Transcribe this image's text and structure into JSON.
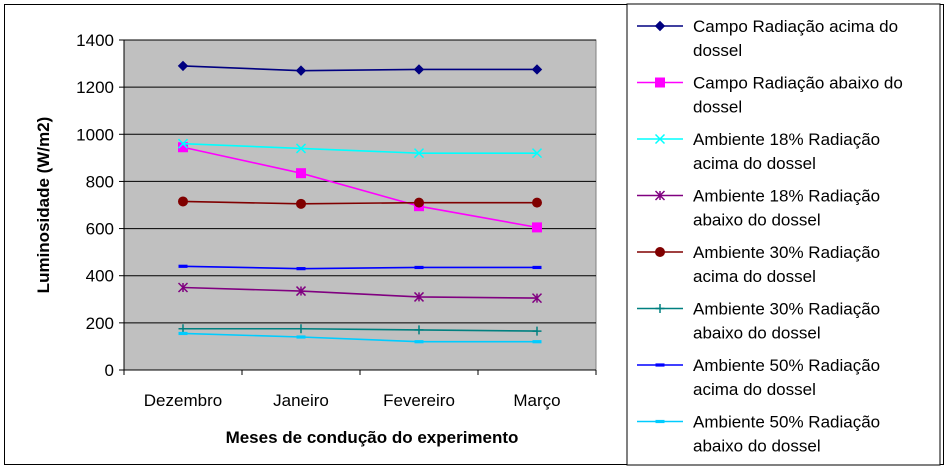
{
  "chart_data": {
    "type": "line",
    "title": "",
    "xlabel": "Meses de condução do experimento",
    "ylabel": "Luminosidade (W/m2)",
    "categories": [
      "Dezembro",
      "Janeiro",
      "Fevereiro",
      "Março"
    ],
    "ylim": [
      0,
      1400
    ],
    "yticks": [
      0,
      200,
      400,
      600,
      800,
      1000,
      1200,
      1400
    ],
    "grid": true,
    "plot_background": "#C0C0C0",
    "legend_position": "right",
    "series": [
      {
        "name": "Campo Radiação acima do dossel",
        "name_lines": [
          "Campo Radiação acima do",
          "dossel"
        ],
        "color": "#000080",
        "marker": "diamond",
        "values": [
          1290,
          1270,
          1275,
          1275
        ]
      },
      {
        "name": "Campo Radiação abaixo do dossel",
        "name_lines": [
          "Campo Radiação abaixo do",
          "dossel"
        ],
        "color": "#FF00FF",
        "marker": "square",
        "values": [
          945,
          835,
          695,
          605
        ]
      },
      {
        "name": "Ambiente 18% Radiação acima do dossel",
        "name_lines": [
          "Ambiente 18% Radiação",
          "acima do dossel"
        ],
        "color": "#00FFFF",
        "marker": "x",
        "values": [
          960,
          940,
          920,
          920
        ]
      },
      {
        "name": "Ambiente 18% Radiação abaixo do dossel",
        "name_lines": [
          "Ambiente 18% Radiação",
          "abaixo do dossel"
        ],
        "color": "#800080",
        "marker": "star",
        "values": [
          350,
          335,
          310,
          305
        ]
      },
      {
        "name": "Ambiente 30% Radiação acima do dossel",
        "name_lines": [
          "Ambiente 30% Radiação",
          "acima do dossel"
        ],
        "color": "#800000",
        "marker": "circle",
        "values": [
          715,
          705,
          710,
          710
        ]
      },
      {
        "name": "Ambiente 30% Radiação abaixo do dossel",
        "name_lines": [
          "Ambiente 30% Radiação",
          "abaixo do dossel"
        ],
        "color": "#008080",
        "marker": "plus",
        "values": [
          175,
          175,
          170,
          165
        ]
      },
      {
        "name": "Ambiente 50% Radiação acima do dossel",
        "name_lines": [
          "Ambiente 50% Radiação",
          "acima do dossel"
        ],
        "color": "#0000FF",
        "marker": "dash",
        "values": [
          440,
          430,
          435,
          435
        ]
      },
      {
        "name": "Ambiente 50% Radiação abaixo do dossel",
        "name_lines": [
          "Ambiente 50% Radiação",
          "abaixo do dossel"
        ],
        "color": "#00CCFF",
        "marker": "dash",
        "values": [
          155,
          140,
          120,
          120
        ]
      }
    ]
  }
}
